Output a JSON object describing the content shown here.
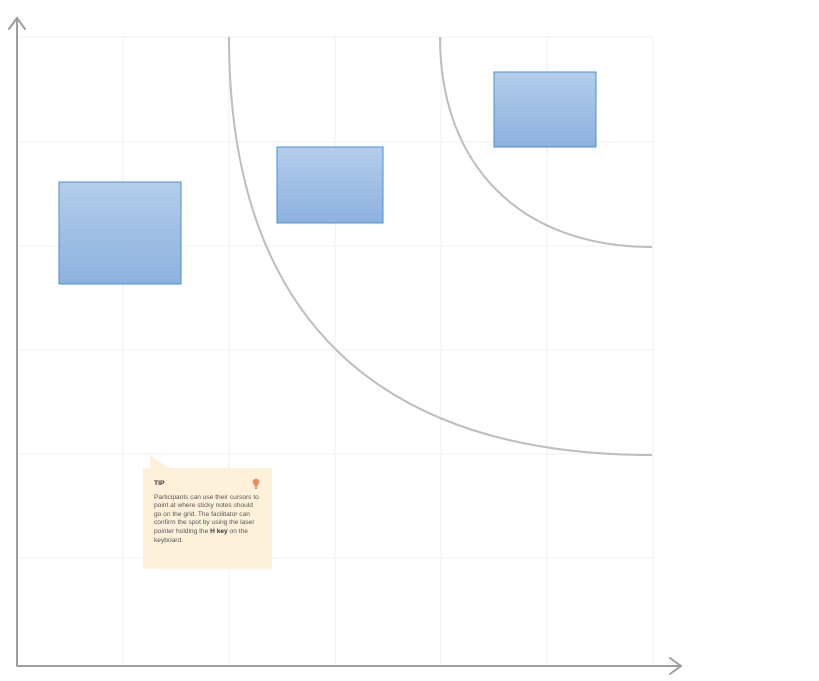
{
  "diagram": {
    "axes": {
      "x_arrow": "right",
      "y_arrow": "up",
      "color": "#9e9e9e"
    },
    "grid": {
      "columns": 6,
      "rows": 6,
      "color": "#eeeeee"
    },
    "curves": {
      "count": 2,
      "color": "#bdbdbd"
    },
    "sticky_notes": [
      {
        "name": "sticky-note-left",
        "color_top": "#b3cdea",
        "color_bottom": "#8fb2e0",
        "border": "#4a90d9"
      },
      {
        "name": "sticky-note-middle",
        "color_top": "#b3cdea",
        "color_bottom": "#8fb2e0",
        "border": "#4a90d9"
      },
      {
        "name": "sticky-note-top-right",
        "color_top": "#b3cdea",
        "color_bottom": "#8fb2e0",
        "border": "#4a90d9"
      }
    ]
  },
  "tip": {
    "title": "TIP",
    "body_before": "Participants can use their cursors to point at where sticky notes should go on the grid. The facilitator can confirm the spot by using the laser pointer holding the ",
    "key": "H key",
    "body_after": " on the keyboard.",
    "icon": "lightbulb-icon",
    "background": "#fdf1da",
    "icon_color": "#f08a5d"
  }
}
